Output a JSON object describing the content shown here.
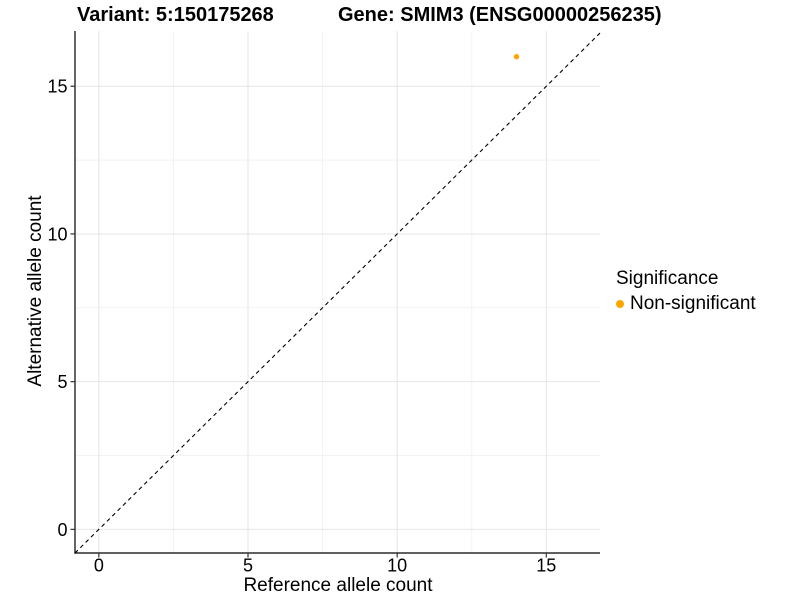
{
  "titles": {
    "variant": "Variant: 5:150175268",
    "gene": "Gene: SMIM3 (ENSG00000256235)"
  },
  "chart_data": {
    "type": "scatter",
    "title": "Variant: 5:150175268   Gene: SMIM3 (ENSG00000256235)",
    "xlabel": "Reference allele count",
    "ylabel": "Alternative allele count",
    "x_ticks": [
      0,
      5,
      10,
      15
    ],
    "y_ticks": [
      0,
      5,
      10,
      15
    ],
    "minor_ticks": [
      2.5,
      7.5,
      12.5
    ],
    "xlim": [
      -0.8,
      16.8
    ],
    "ylim": [
      -0.8,
      16.87
    ],
    "grid": true,
    "points": [
      {
        "x": 14,
        "y": 16,
        "series": "Non-significant"
      }
    ],
    "abline": {
      "slope": 1,
      "intercept": 0,
      "style": "dashed"
    },
    "colors": {
      "non_significant": "#FFA500",
      "grid_major": "#E6E6E6",
      "grid_minor": "#F2F2F2",
      "axis_line": "#000000",
      "tick": "#333333",
      "abline": "#000000"
    },
    "legend": {
      "title": "Significance",
      "position": "right",
      "items": [
        {
          "label": "Non-significant",
          "color": "#FFA500"
        }
      ]
    }
  }
}
